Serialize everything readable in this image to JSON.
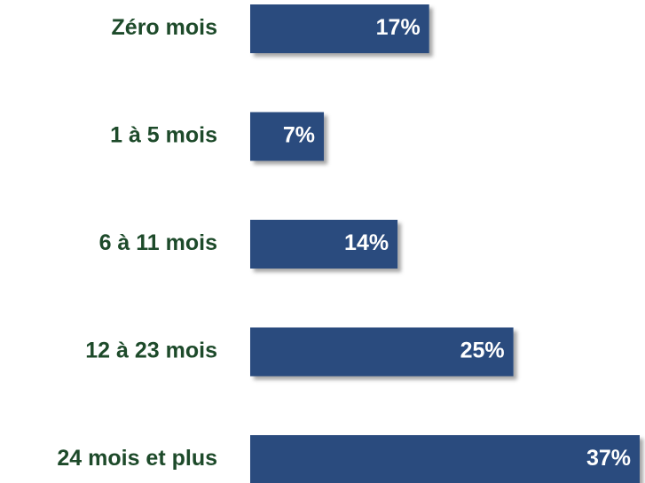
{
  "chart_data": {
    "type": "bar",
    "orientation": "horizontal",
    "categories": [
      "Zéro mois",
      "1 à 5 mois",
      "6 à 11 mois",
      "12 à 23 mois",
      "24 mois et plus"
    ],
    "values": [
      17,
      7,
      14,
      25,
      37
    ],
    "value_labels": [
      "17%",
      "7%",
      "14%",
      "25%",
      "37%"
    ],
    "color": "#2b4c7e"
  }
}
